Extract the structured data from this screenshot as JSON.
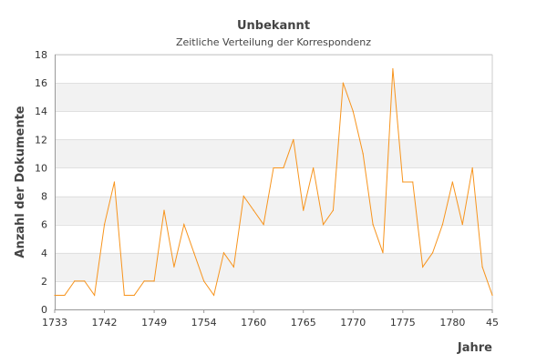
{
  "chart_data": {
    "type": "line",
    "title": "Unbekannt",
    "subtitle": "Zeitliche Verteilung der Korrespondenz",
    "xlabel": "Jahre",
    "ylabel": "Anzahl der Dokumente",
    "ylim": [
      0,
      18
    ],
    "y_ticks": [
      0,
      2,
      4,
      6,
      8,
      10,
      12,
      14,
      16,
      18
    ],
    "x_tick_labels": [
      "1733",
      "1742",
      "1749",
      "1754",
      "1760",
      "1765",
      "1770",
      "1775",
      "1780",
      "45"
    ],
    "grid": "horizontal bands",
    "line_color": "#f7941d",
    "band_color": "#f2f2f2",
    "series": [
      {
        "values": [
          1,
          1,
          2,
          2,
          1,
          6,
          9,
          1,
          1,
          2,
          2,
          7,
          3,
          6,
          4,
          2,
          1,
          4,
          3,
          8,
          7,
          6,
          10,
          10,
          12,
          7,
          10,
          6,
          7,
          16,
          14,
          11,
          6,
          4,
          17,
          9,
          9,
          3,
          4,
          6,
          9,
          6,
          10,
          3,
          1
        ]
      }
    ]
  }
}
